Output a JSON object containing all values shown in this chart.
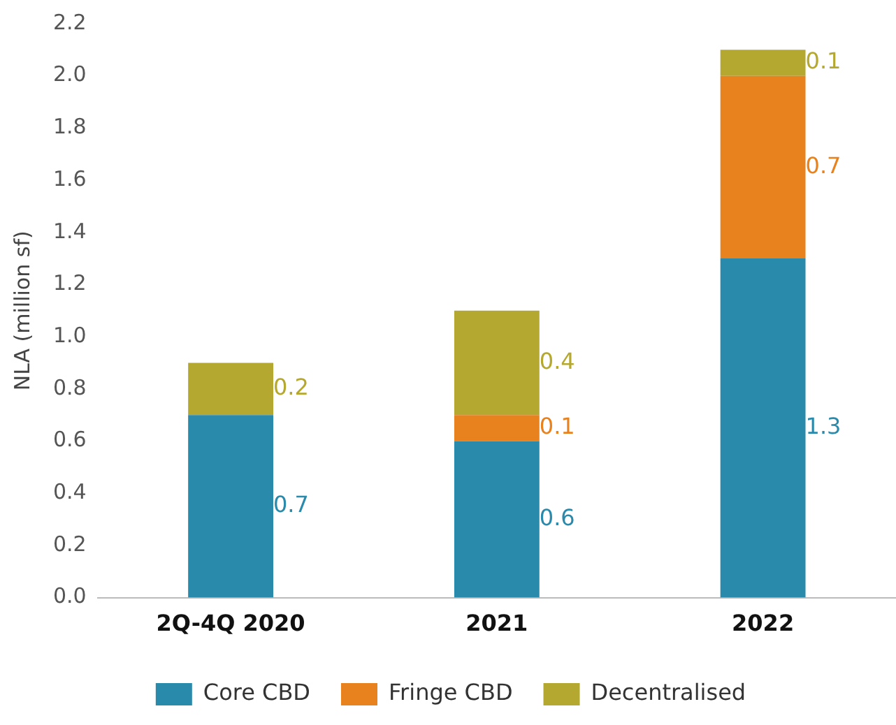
{
  "chart_data": {
    "type": "bar",
    "stacked": true,
    "ylabel": "NLA (million sf)",
    "categories": [
      "2Q-4Q 2020",
      "2021",
      "2022"
    ],
    "series": [
      {
        "name": "Core CBD",
        "color": "#2a8aab",
        "values": [
          0.7,
          0.6,
          1.3
        ]
      },
      {
        "name": "Fringe CBD",
        "color": "#e8821e",
        "values": [
          null,
          0.1,
          0.7
        ]
      },
      {
        "name": "Decentralised",
        "color": "#b5a830",
        "values": [
          0.2,
          0.4,
          0.1
        ]
      }
    ],
    "ylim": [
      0,
      2.2
    ],
    "yticks": [
      {
        "value": 0,
        "label": "0.0"
      },
      {
        "value": 0.2,
        "label": "0.2"
      },
      {
        "value": 0.4,
        "label": "0.4"
      },
      {
        "value": 0.6,
        "label": "0.6"
      },
      {
        "value": 0.8,
        "label": "0.8"
      },
      {
        "value": 1,
        "label": "1.0"
      },
      {
        "value": 1.2,
        "label": "1.2"
      },
      {
        "value": 1.4,
        "label": "1.4"
      },
      {
        "value": 1.6,
        "label": "1.6"
      },
      {
        "value": 1.8,
        "label": "1.8"
      },
      {
        "value": 2,
        "label": "2.0"
      },
      {
        "value": 2.2,
        "label": "2.2"
      }
    ],
    "grid": false,
    "legend": "bottom",
    "data_labels": true
  }
}
